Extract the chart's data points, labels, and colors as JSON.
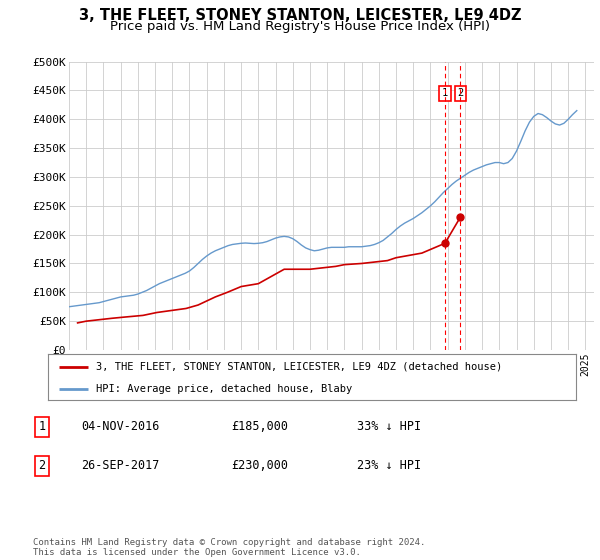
{
  "title": "3, THE FLEET, STONEY STANTON, LEICESTER, LE9 4DZ",
  "subtitle": "Price paid vs. HM Land Registry's House Price Index (HPI)",
  "title_fontsize": 10.5,
  "subtitle_fontsize": 9.5,
  "background_color": "#ffffff",
  "plot_bg_color": "#ffffff",
  "grid_color": "#cccccc",
  "ylim": [
    0,
    500000
  ],
  "yticks": [
    0,
    50000,
    100000,
    150000,
    200000,
    250000,
    300000,
    350000,
    400000,
    450000,
    500000
  ],
  "ytick_labels": [
    "£0",
    "£50K",
    "£100K",
    "£150K",
    "£200K",
    "£250K",
    "£300K",
    "£350K",
    "£400K",
    "£450K",
    "£500K"
  ],
  "xlim_start": 1995.0,
  "xlim_end": 2025.5,
  "hpi_color": "#6699cc",
  "price_color": "#cc0000",
  "marker1_x": 2016.84,
  "marker2_x": 2017.73,
  "marker1_price": 185000,
  "marker2_price": 230000,
  "legend_label1": "3, THE FLEET, STONEY STANTON, LEICESTER, LE9 4DZ (detached house)",
  "legend_label2": "HPI: Average price, detached house, Blaby",
  "table_row1_num": "1",
  "table_row1_date": "04-NOV-2016",
  "table_row1_price": "£185,000",
  "table_row1_hpi": "33% ↓ HPI",
  "table_row2_num": "2",
  "table_row2_date": "26-SEP-2017",
  "table_row2_price": "£230,000",
  "table_row2_hpi": "23% ↓ HPI",
  "footnote": "Contains HM Land Registry data © Crown copyright and database right 2024.\nThis data is licensed under the Open Government Licence v3.0.",
  "hpi_x": [
    1995,
    1995.25,
    1995.5,
    1995.75,
    1996,
    1996.25,
    1996.5,
    1996.75,
    1997,
    1997.25,
    1997.5,
    1997.75,
    1998,
    1998.25,
    1998.5,
    1998.75,
    1999,
    1999.25,
    1999.5,
    1999.75,
    2000,
    2000.25,
    2000.5,
    2000.75,
    2001,
    2001.25,
    2001.5,
    2001.75,
    2002,
    2002.25,
    2002.5,
    2002.75,
    2003,
    2003.25,
    2003.5,
    2003.75,
    2004,
    2004.25,
    2004.5,
    2004.75,
    2005,
    2005.25,
    2005.5,
    2005.75,
    2006,
    2006.25,
    2006.5,
    2006.75,
    2007,
    2007.25,
    2007.5,
    2007.75,
    2008,
    2008.25,
    2008.5,
    2008.75,
    2009,
    2009.25,
    2009.5,
    2009.75,
    2010,
    2010.25,
    2010.5,
    2010.75,
    2011,
    2011.25,
    2011.5,
    2011.75,
    2012,
    2012.25,
    2012.5,
    2012.75,
    2013,
    2013.25,
    2013.5,
    2013.75,
    2014,
    2014.25,
    2014.5,
    2014.75,
    2015,
    2015.25,
    2015.5,
    2015.75,
    2016,
    2016.25,
    2016.5,
    2016.75,
    2017,
    2017.25,
    2017.5,
    2017.75,
    2018,
    2018.25,
    2018.5,
    2018.75,
    2019,
    2019.25,
    2019.5,
    2019.75,
    2020,
    2020.25,
    2020.5,
    2020.75,
    2021,
    2021.25,
    2021.5,
    2021.75,
    2022,
    2022.25,
    2022.5,
    2022.75,
    2023,
    2023.25,
    2023.5,
    2023.75,
    2024,
    2024.25,
    2024.5
  ],
  "hpi_y": [
    75000,
    76000,
    77000,
    78000,
    79000,
    80000,
    81000,
    82000,
    84000,
    86000,
    88000,
    90000,
    92000,
    93000,
    94000,
    95000,
    97000,
    100000,
    103000,
    107000,
    111000,
    115000,
    118000,
    121000,
    124000,
    127000,
    130000,
    133000,
    137000,
    143000,
    150000,
    157000,
    163000,
    168000,
    172000,
    175000,
    178000,
    181000,
    183000,
    184000,
    185000,
    185500,
    185000,
    184500,
    185000,
    186000,
    188000,
    191000,
    194000,
    196000,
    197000,
    196000,
    193000,
    188000,
    182000,
    177000,
    174000,
    172000,
    173000,
    175000,
    177000,
    178000,
    178000,
    178000,
    178000,
    179000,
    179000,
    179000,
    179000,
    180000,
    181000,
    183000,
    186000,
    190000,
    196000,
    202000,
    209000,
    215000,
    220000,
    224000,
    228000,
    233000,
    238000,
    244000,
    250000,
    257000,
    265000,
    273000,
    280000,
    287000,
    293000,
    298000,
    303000,
    308000,
    312000,
    315000,
    318000,
    321000,
    323000,
    325000,
    325000,
    323000,
    325000,
    332000,
    345000,
    362000,
    380000,
    395000,
    405000,
    410000,
    408000,
    403000,
    397000,
    392000,
    390000,
    393000,
    400000,
    408000,
    415000
  ],
  "price_x": [
    1995.5,
    1996.0,
    1997.5,
    1998.2,
    1999.3,
    2000.1,
    2001.8,
    2002.5,
    2003.5,
    2004.2,
    2005.0,
    2006.0,
    2007.5,
    2009.0,
    2010.5,
    2011.0,
    2012.0,
    2013.5,
    2014.0,
    2015.5,
    2016.84,
    2017.73
  ],
  "price_y": [
    47000,
    50000,
    55000,
    57000,
    60000,
    65000,
    72000,
    78000,
    92000,
    100000,
    110000,
    115000,
    140000,
    140000,
    145000,
    148000,
    150000,
    155000,
    160000,
    168000,
    185000,
    230000
  ]
}
